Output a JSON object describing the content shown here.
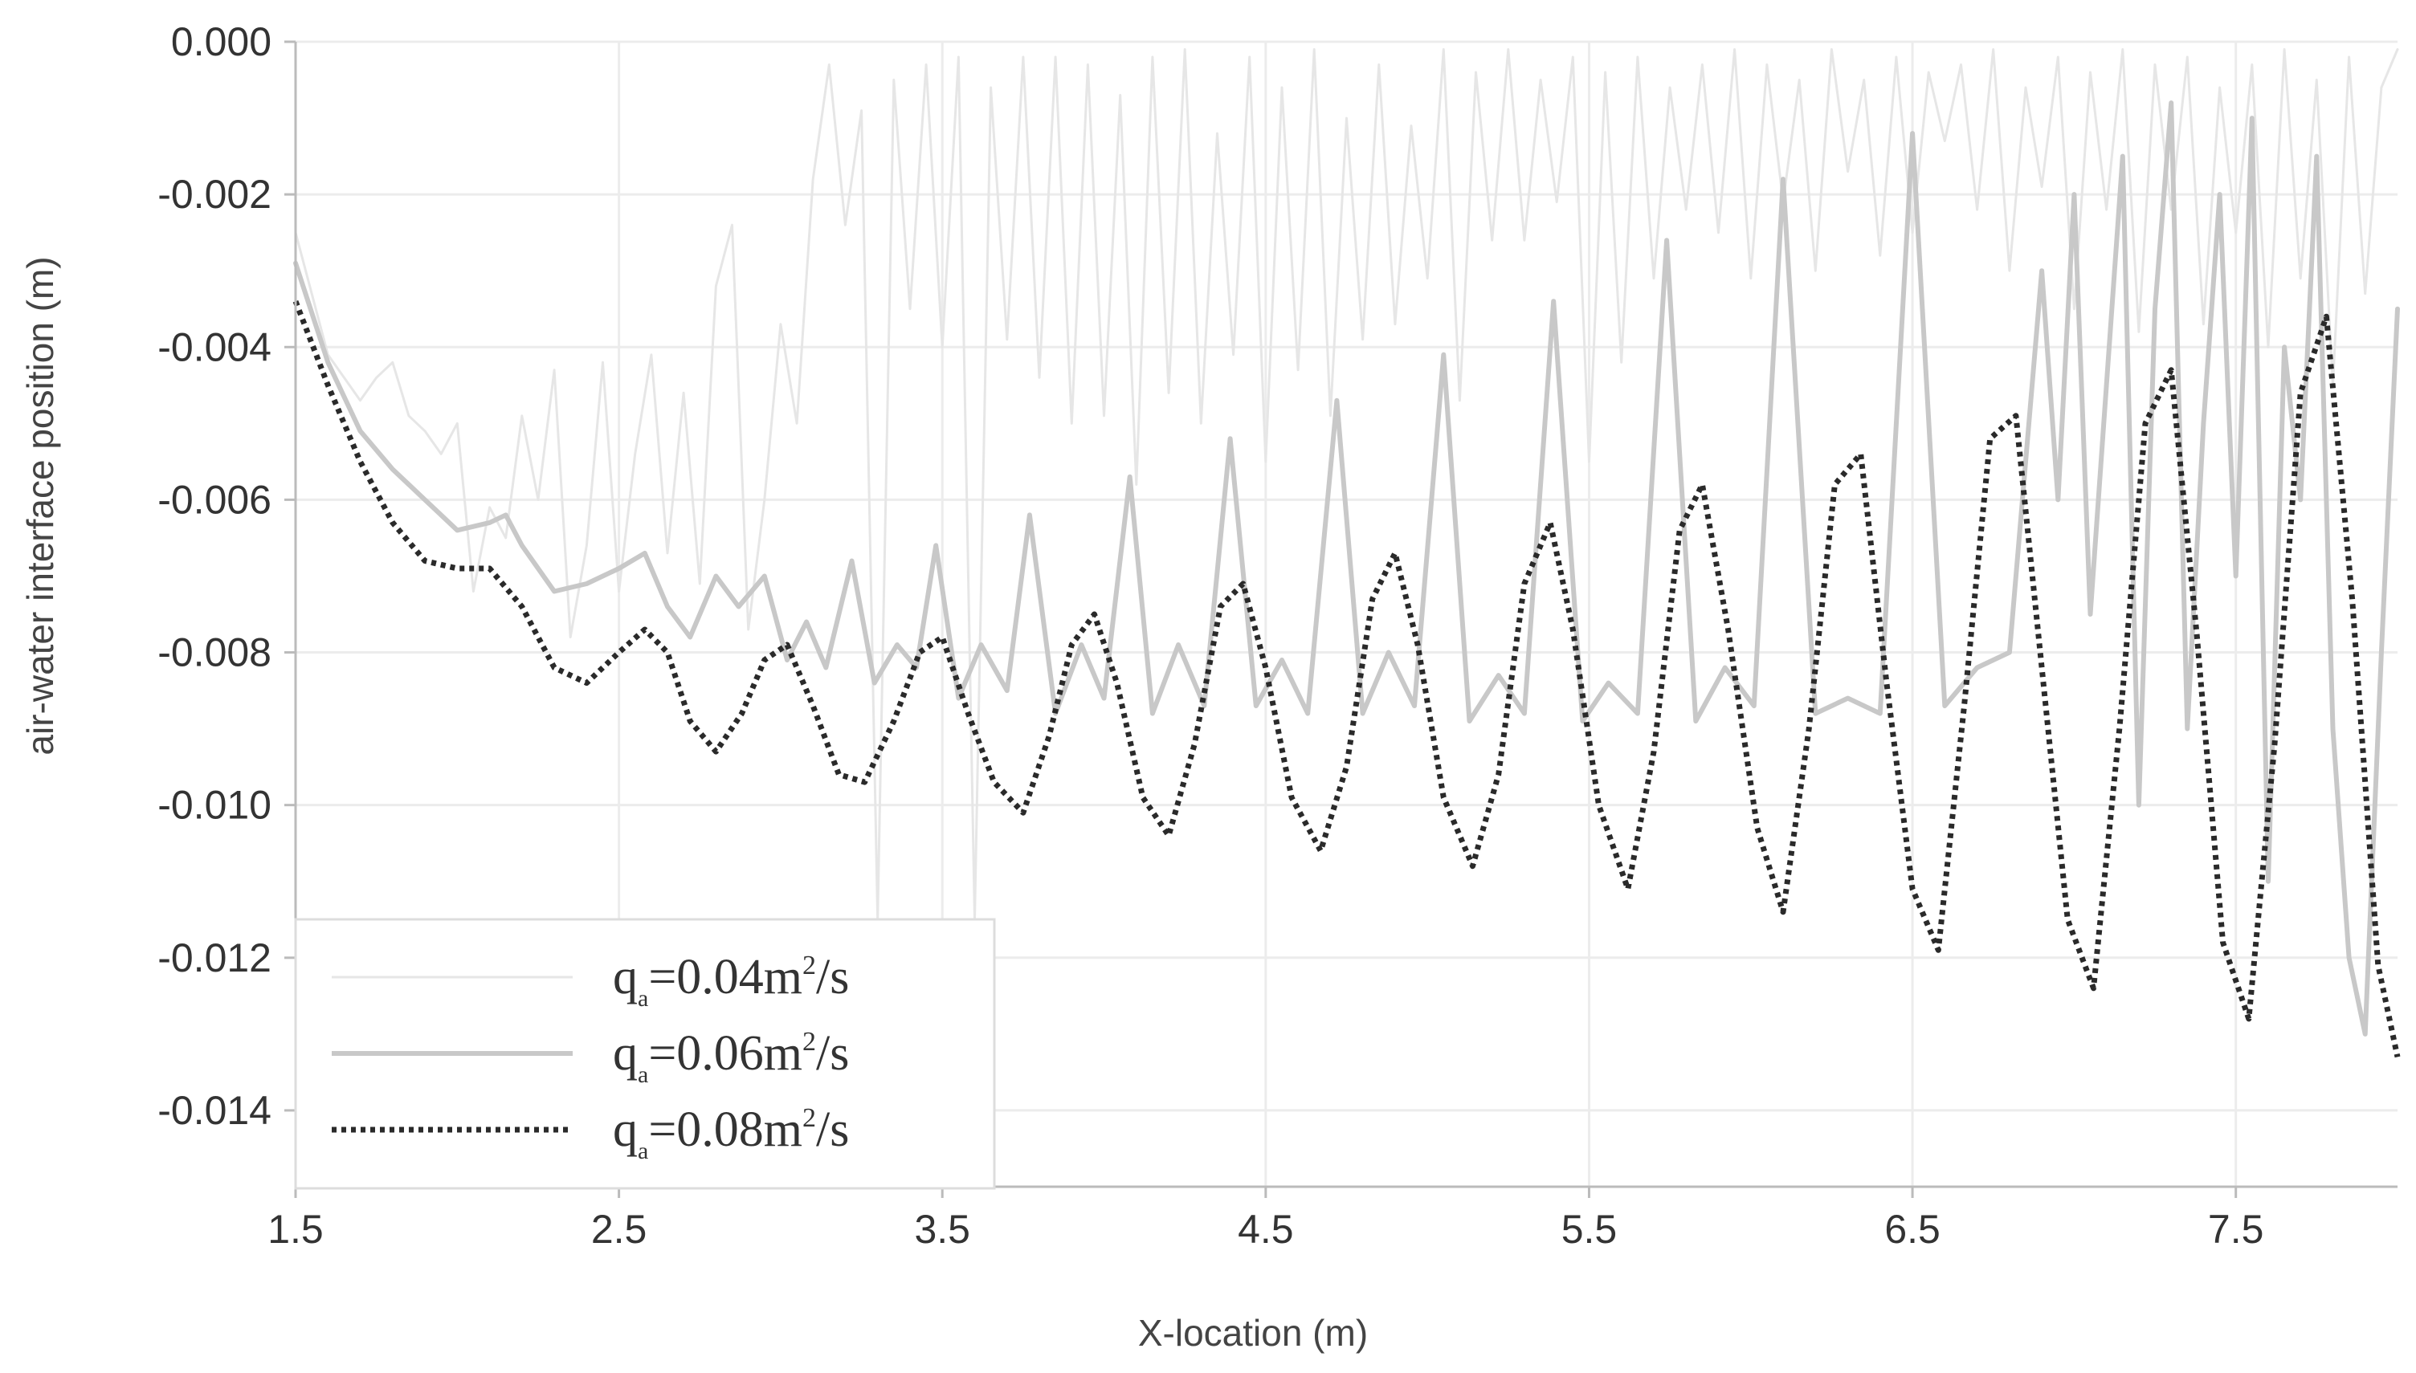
{
  "chart_data": {
    "type": "line",
    "title": "",
    "xlabel": "X-location (m)",
    "ylabel": "air-water interface position (m)",
    "xlim": [
      1.5,
      8.0
    ],
    "ylim": [
      -0.015,
      0.0
    ],
    "xticks": [
      "1.5",
      "2.5",
      "3.5",
      "4.5",
      "5.5",
      "6.5",
      "7.5"
    ],
    "yticks": [
      "0.000",
      "-0.002",
      "-0.004",
      "-0.006",
      "-0.008",
      "-0.010",
      "-0.012",
      "-0.014"
    ],
    "grid": true,
    "legend_position": "bottom-left",
    "series": [
      {
        "legend": {
          "base": "q",
          "sub": "a",
          "value": "=0.04m",
          "sup": "2",
          "unit": "/s"
        },
        "color": "#e6e6e6",
        "style": "solid",
        "x": [
          1.5,
          1.6,
          1.7,
          1.75,
          1.8,
          1.85,
          1.9,
          1.95,
          2.0,
          2.05,
          2.1,
          2.15,
          2.2,
          2.25,
          2.3,
          2.35,
          2.4,
          2.45,
          2.5,
          2.55,
          2.6,
          2.65,
          2.7,
          2.75,
          2.8,
          2.85,
          2.9,
          2.95,
          3.0,
          3.05,
          3.1,
          3.15,
          3.2,
          3.25,
          3.3,
          3.35,
          3.4,
          3.45,
          3.5,
          3.55,
          3.6,
          3.65,
          3.7,
          3.75,
          3.8,
          3.85,
          3.9,
          3.95,
          4.0,
          4.05,
          4.1,
          4.15,
          4.2,
          4.25,
          4.3,
          4.35,
          4.4,
          4.45,
          4.5,
          4.55,
          4.6,
          4.65,
          4.7,
          4.75,
          4.8,
          4.85,
          4.9,
          4.95,
          5.0,
          5.05,
          5.1,
          5.15,
          5.2,
          5.25,
          5.3,
          5.35,
          5.4,
          5.45,
          5.5,
          5.55,
          5.6,
          5.65,
          5.7,
          5.75,
          5.8,
          5.85,
          5.9,
          5.95,
          6.0,
          6.05,
          6.1,
          6.15,
          6.2,
          6.25,
          6.3,
          6.35,
          6.4,
          6.45,
          6.5,
          6.55,
          6.6,
          6.65,
          6.7,
          6.75,
          6.8,
          6.85,
          6.9,
          6.95,
          7.0,
          7.05,
          7.1,
          7.15,
          7.2,
          7.25,
          7.3,
          7.35,
          7.4,
          7.45,
          7.5,
          7.55,
          7.6,
          7.65,
          7.7,
          7.75,
          7.8,
          7.85,
          7.9,
          7.95,
          8.0
        ],
        "y": [
          -0.0025,
          -0.0041,
          -0.0047,
          -0.0044,
          -0.0042,
          -0.0049,
          -0.0051,
          -0.0054,
          -0.005,
          -0.0072,
          -0.0061,
          -0.0065,
          -0.0049,
          -0.006,
          -0.0043,
          -0.0078,
          -0.0066,
          -0.0042,
          -0.0072,
          -0.0054,
          -0.0041,
          -0.0067,
          -0.0046,
          -0.0071,
          -0.0032,
          -0.0024,
          -0.0077,
          -0.006,
          -0.0037,
          -0.005,
          -0.0018,
          -0.0003,
          -0.0024,
          -0.0009,
          -0.0115,
          -0.0005,
          -0.0035,
          -0.0003,
          -0.004,
          -0.0002,
          -0.0115,
          -0.0006,
          -0.0039,
          -0.0002,
          -0.0044,
          -0.0002,
          -0.005,
          -0.0003,
          -0.0049,
          -0.0007,
          -0.0058,
          -0.0002,
          -0.0046,
          -0.0001,
          -0.005,
          -0.0012,
          -0.0041,
          -0.0002,
          -0.0055,
          -0.0006,
          -0.0043,
          -0.0001,
          -0.0049,
          -0.001,
          -0.0039,
          -0.0003,
          -0.0037,
          -0.0011,
          -0.0031,
          -0.0001,
          -0.0047,
          -0.0004,
          -0.0026,
          -0.0001,
          -0.0026,
          -0.0005,
          -0.0021,
          -0.0002,
          -0.0055,
          -0.0004,
          -0.0042,
          -0.0002,
          -0.0031,
          -0.0006,
          -0.0022,
          -0.0003,
          -0.0025,
          -0.0001,
          -0.0031,
          -0.0003,
          -0.0021,
          -0.0005,
          -0.003,
          -0.0001,
          -0.0017,
          -0.0005,
          -0.0028,
          -0.0002,
          -0.0025,
          -0.0004,
          -0.0013,
          -0.0003,
          -0.0022,
          -0.0001,
          -0.003,
          -0.0006,
          -0.0019,
          -0.0002,
          -0.0035,
          -0.0004,
          -0.0022,
          -0.0001,
          -0.0038,
          -0.0003,
          -0.0022,
          -0.0002,
          -0.0037,
          -0.0006,
          -0.0025,
          -0.0003,
          -0.004,
          -0.0001,
          -0.0031,
          -0.0005,
          -0.0045,
          -0.0002,
          -0.0033,
          -0.0006,
          -0.0001
        ]
      },
      {
        "legend": {
          "base": "q",
          "sub": "a",
          "value": "=0.06m",
          "sup": "2",
          "unit": "/s"
        },
        "color": "#c8c8c8",
        "style": "solid",
        "x": [
          1.5,
          1.6,
          1.7,
          1.8,
          1.9,
          2.0,
          2.1,
          2.15,
          2.2,
          2.3,
          2.4,
          2.5,
          2.58,
          2.65,
          2.72,
          2.8,
          2.87,
          2.95,
          3.02,
          3.08,
          3.14,
          3.22,
          3.29,
          3.36,
          3.42,
          3.48,
          3.55,
          3.62,
          3.7,
          3.77,
          3.85,
          3.93,
          4.0,
          4.08,
          4.15,
          4.23,
          4.31,
          4.39,
          4.47,
          4.55,
          4.63,
          4.72,
          4.8,
          4.88,
          4.96,
          5.05,
          5.13,
          5.22,
          5.3,
          5.39,
          5.48,
          5.56,
          5.65,
          5.74,
          5.83,
          5.92,
          6.01,
          6.1,
          6.2,
          6.3,
          6.4,
          6.5,
          6.6,
          6.7,
          6.8,
          6.9,
          6.95,
          7.0,
          7.05,
          7.1,
          7.15,
          7.2,
          7.25,
          7.3,
          7.35,
          7.4,
          7.45,
          7.5,
          7.55,
          7.6,
          7.65,
          7.7,
          7.75,
          7.8,
          7.85,
          7.9,
          7.95,
          8.0
        ],
        "y": [
          -0.0029,
          -0.0042,
          -0.0051,
          -0.0056,
          -0.006,
          -0.0064,
          -0.0063,
          -0.0062,
          -0.0066,
          -0.0072,
          -0.0071,
          -0.0069,
          -0.0067,
          -0.0074,
          -0.0078,
          -0.007,
          -0.0074,
          -0.007,
          -0.0081,
          -0.0076,
          -0.0082,
          -0.0068,
          -0.0084,
          -0.0079,
          -0.0082,
          -0.0066,
          -0.0086,
          -0.0079,
          -0.0085,
          -0.0062,
          -0.0088,
          -0.0079,
          -0.0086,
          -0.0057,
          -0.0088,
          -0.0079,
          -0.0087,
          -0.0052,
          -0.0087,
          -0.0081,
          -0.0088,
          -0.0047,
          -0.0088,
          -0.008,
          -0.0087,
          -0.0041,
          -0.0089,
          -0.0083,
          -0.0088,
          -0.0034,
          -0.0089,
          -0.0084,
          -0.0088,
          -0.0026,
          -0.0089,
          -0.0082,
          -0.0087,
          -0.0018,
          -0.0088,
          -0.0086,
          -0.0088,
          -0.0012,
          -0.0087,
          -0.0082,
          -0.008,
          -0.003,
          -0.006,
          -0.002,
          -0.0075,
          -0.0045,
          -0.0015,
          -0.01,
          -0.0035,
          -0.0008,
          -0.009,
          -0.005,
          -0.002,
          -0.007,
          -0.001,
          -0.011,
          -0.004,
          -0.006,
          -0.0015,
          -0.009,
          -0.012,
          -0.013,
          -0.008,
          -0.0035
        ]
      },
      {
        "legend": {
          "base": "q",
          "sub": "a",
          "value": "=0.08m",
          "sup": "2",
          "unit": "/s"
        },
        "color": "#2a2a2a",
        "style": "dotted",
        "x": [
          1.5,
          1.6,
          1.7,
          1.8,
          1.9,
          2.0,
          2.1,
          2.2,
          2.3,
          2.4,
          2.5,
          2.58,
          2.65,
          2.72,
          2.8,
          2.88,
          2.95,
          3.02,
          3.1,
          3.18,
          3.26,
          3.35,
          3.43,
          3.5,
          3.58,
          3.66,
          3.75,
          3.83,
          3.9,
          3.97,
          4.04,
          4.12,
          4.2,
          4.28,
          4.36,
          4.43,
          4.5,
          4.58,
          4.67,
          4.75,
          4.83,
          4.9,
          4.97,
          5.05,
          5.14,
          5.22,
          5.3,
          5.38,
          5.45,
          5.53,
          5.62,
          5.7,
          5.78,
          5.85,
          5.93,
          6.02,
          6.1,
          6.18,
          6.26,
          6.34,
          6.42,
          6.5,
          6.58,
          6.66,
          6.74,
          6.82,
          6.9,
          6.98,
          7.06,
          7.14,
          7.22,
          7.3,
          7.38,
          7.46,
          7.54,
          7.62,
          7.7,
          7.78,
          7.86,
          7.94,
          8.0
        ],
        "y": [
          -0.0034,
          -0.0045,
          -0.0055,
          -0.0063,
          -0.0068,
          -0.0069,
          -0.0069,
          -0.0074,
          -0.0082,
          -0.0084,
          -0.008,
          -0.0077,
          -0.008,
          -0.0089,
          -0.0093,
          -0.0088,
          -0.0081,
          -0.0079,
          -0.0087,
          -0.0096,
          -0.0097,
          -0.0089,
          -0.008,
          -0.0078,
          -0.0088,
          -0.0097,
          -0.0101,
          -0.0091,
          -0.0079,
          -0.0075,
          -0.0084,
          -0.0099,
          -0.0104,
          -0.0092,
          -0.0074,
          -0.0071,
          -0.0082,
          -0.0099,
          -0.0106,
          -0.0095,
          -0.0073,
          -0.0067,
          -0.0079,
          -0.0099,
          -0.0108,
          -0.0096,
          -0.0071,
          -0.0063,
          -0.0077,
          -0.01,
          -0.0111,
          -0.0093,
          -0.0064,
          -0.0058,
          -0.0077,
          -0.0103,
          -0.0114,
          -0.009,
          -0.0058,
          -0.0054,
          -0.0084,
          -0.0111,
          -0.0119,
          -0.0087,
          -0.0052,
          -0.0049,
          -0.0082,
          -0.0115,
          -0.0124,
          -0.009,
          -0.005,
          -0.0043,
          -0.0078,
          -0.0118,
          -0.0128,
          -0.0092,
          -0.0046,
          -0.0036,
          -0.0073,
          -0.0121,
          -0.0133
        ]
      }
    ]
  }
}
